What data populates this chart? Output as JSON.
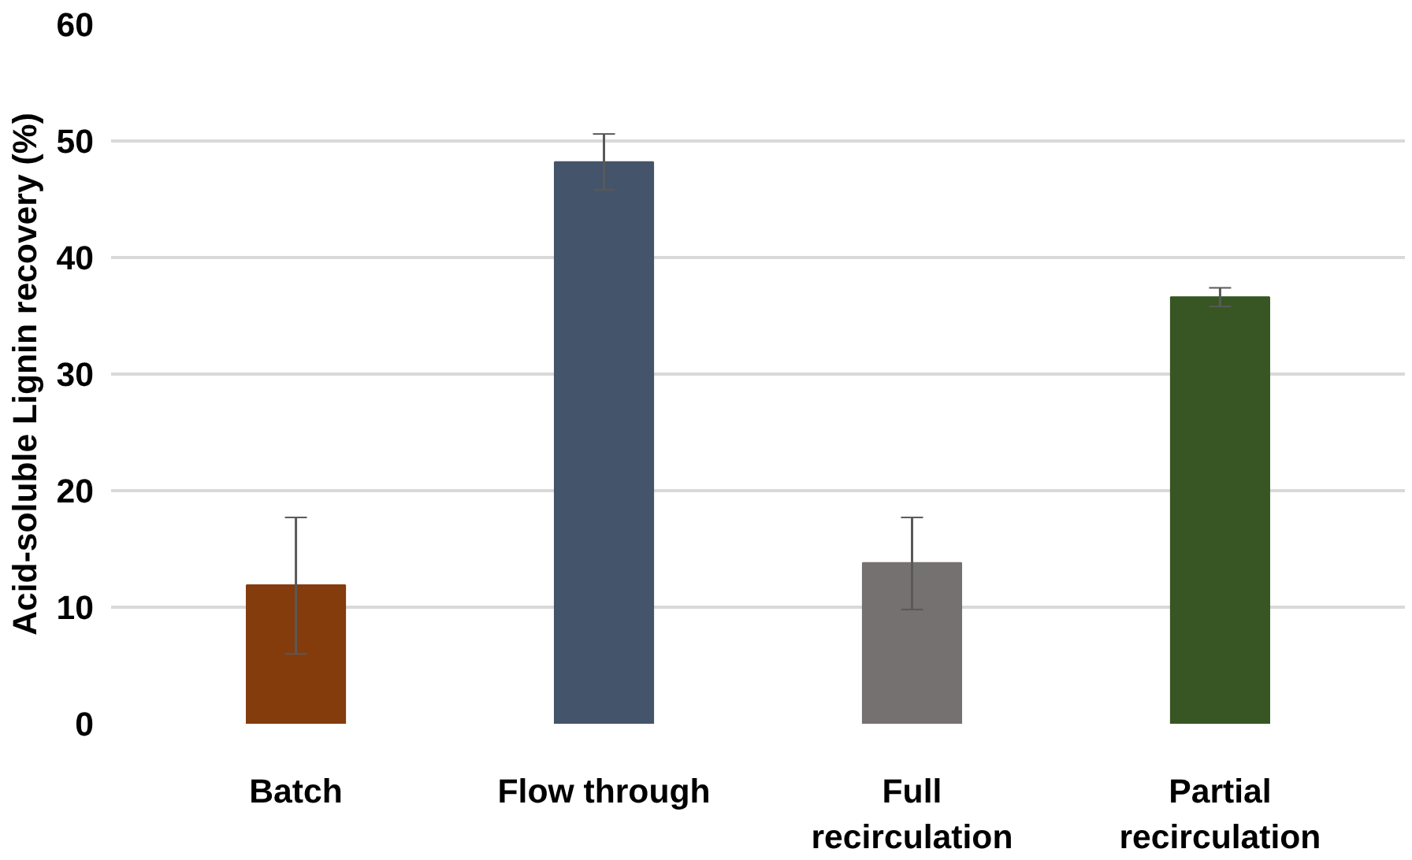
{
  "chart_data": {
    "type": "bar",
    "ylabel": "Acid-soluble Lignin recovery (%)",
    "categories": [
      "Batch",
      "Flow through",
      "Full\nrecirculation",
      "Partial\nrecirculation"
    ],
    "values": [
      11.9,
      48.2,
      13.8,
      36.6
    ],
    "colors": [
      "#843c0c",
      "#44546a",
      "#767171",
      "#375623"
    ],
    "errors": [
      [
        6.0,
        17.7
      ],
      [
        45.8,
        50.6
      ],
      [
        9.8,
        17.7
      ],
      [
        35.8,
        37.4
      ]
    ],
    "ylim": [
      0,
      60
    ],
    "yticks": [
      0,
      10,
      20,
      30,
      40,
      50,
      60
    ],
    "grid": "y"
  }
}
